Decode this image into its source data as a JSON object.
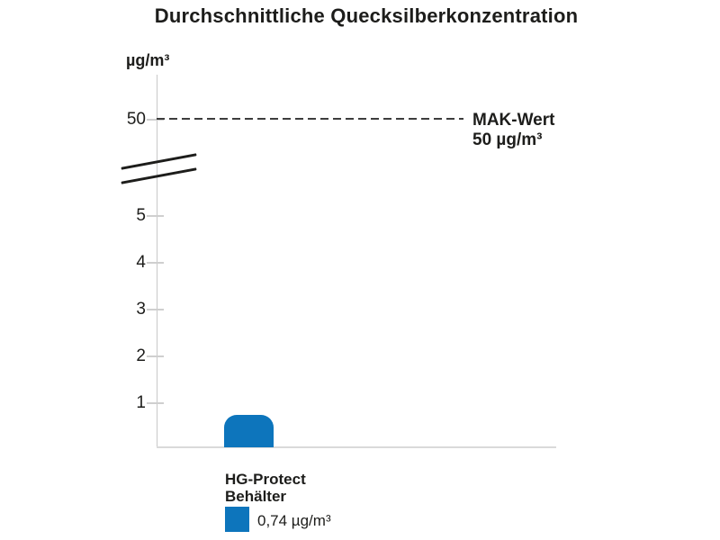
{
  "chart": {
    "title": "Durchschnittliche Quecksilberkonzentration",
    "y_unit": "µg/m³",
    "reference": {
      "tick": "50",
      "line1": "MAK-Wert",
      "line2": "50 µg/m³"
    },
    "yticks": [
      "5",
      "4",
      "3",
      "2",
      "1"
    ],
    "category": {
      "line1": "HG-Protect",
      "line2": "Behälter"
    },
    "legend": {
      "value": "0,74 µg/m³"
    },
    "colors": {
      "bar": "#0d75bc",
      "text": "#1d1d1b",
      "axis": "#c8c8c8",
      "dashed_line": "#3d3d3d"
    }
  },
  "chart_data": {
    "type": "bar",
    "title": "Durchschnittliche Quecksilberkonzentration",
    "ylabel": "µg/m³",
    "xlabel": "",
    "categories": [
      "HG-Protect Behälter"
    ],
    "values": [
      0.74
    ],
    "series": [
      {
        "name": "HG-Protect Behälter",
        "values": [
          0.74
        ],
        "color": "#0d75bc"
      }
    ],
    "value_labels": [
      "0,74 µg/m³"
    ],
    "yticks_shown": [
      1,
      2,
      3,
      4,
      5,
      50
    ],
    "axis_break_between": [
      5,
      50
    ],
    "reference_line": {
      "value": 50,
      "label": "MAK-Wert",
      "sublabel": "50 µg/m³",
      "style": "dashed",
      "color": "#3d3d3d"
    },
    "grid": false,
    "legend_position": "below-axis-left",
    "bar_shape": "rounded-top"
  }
}
